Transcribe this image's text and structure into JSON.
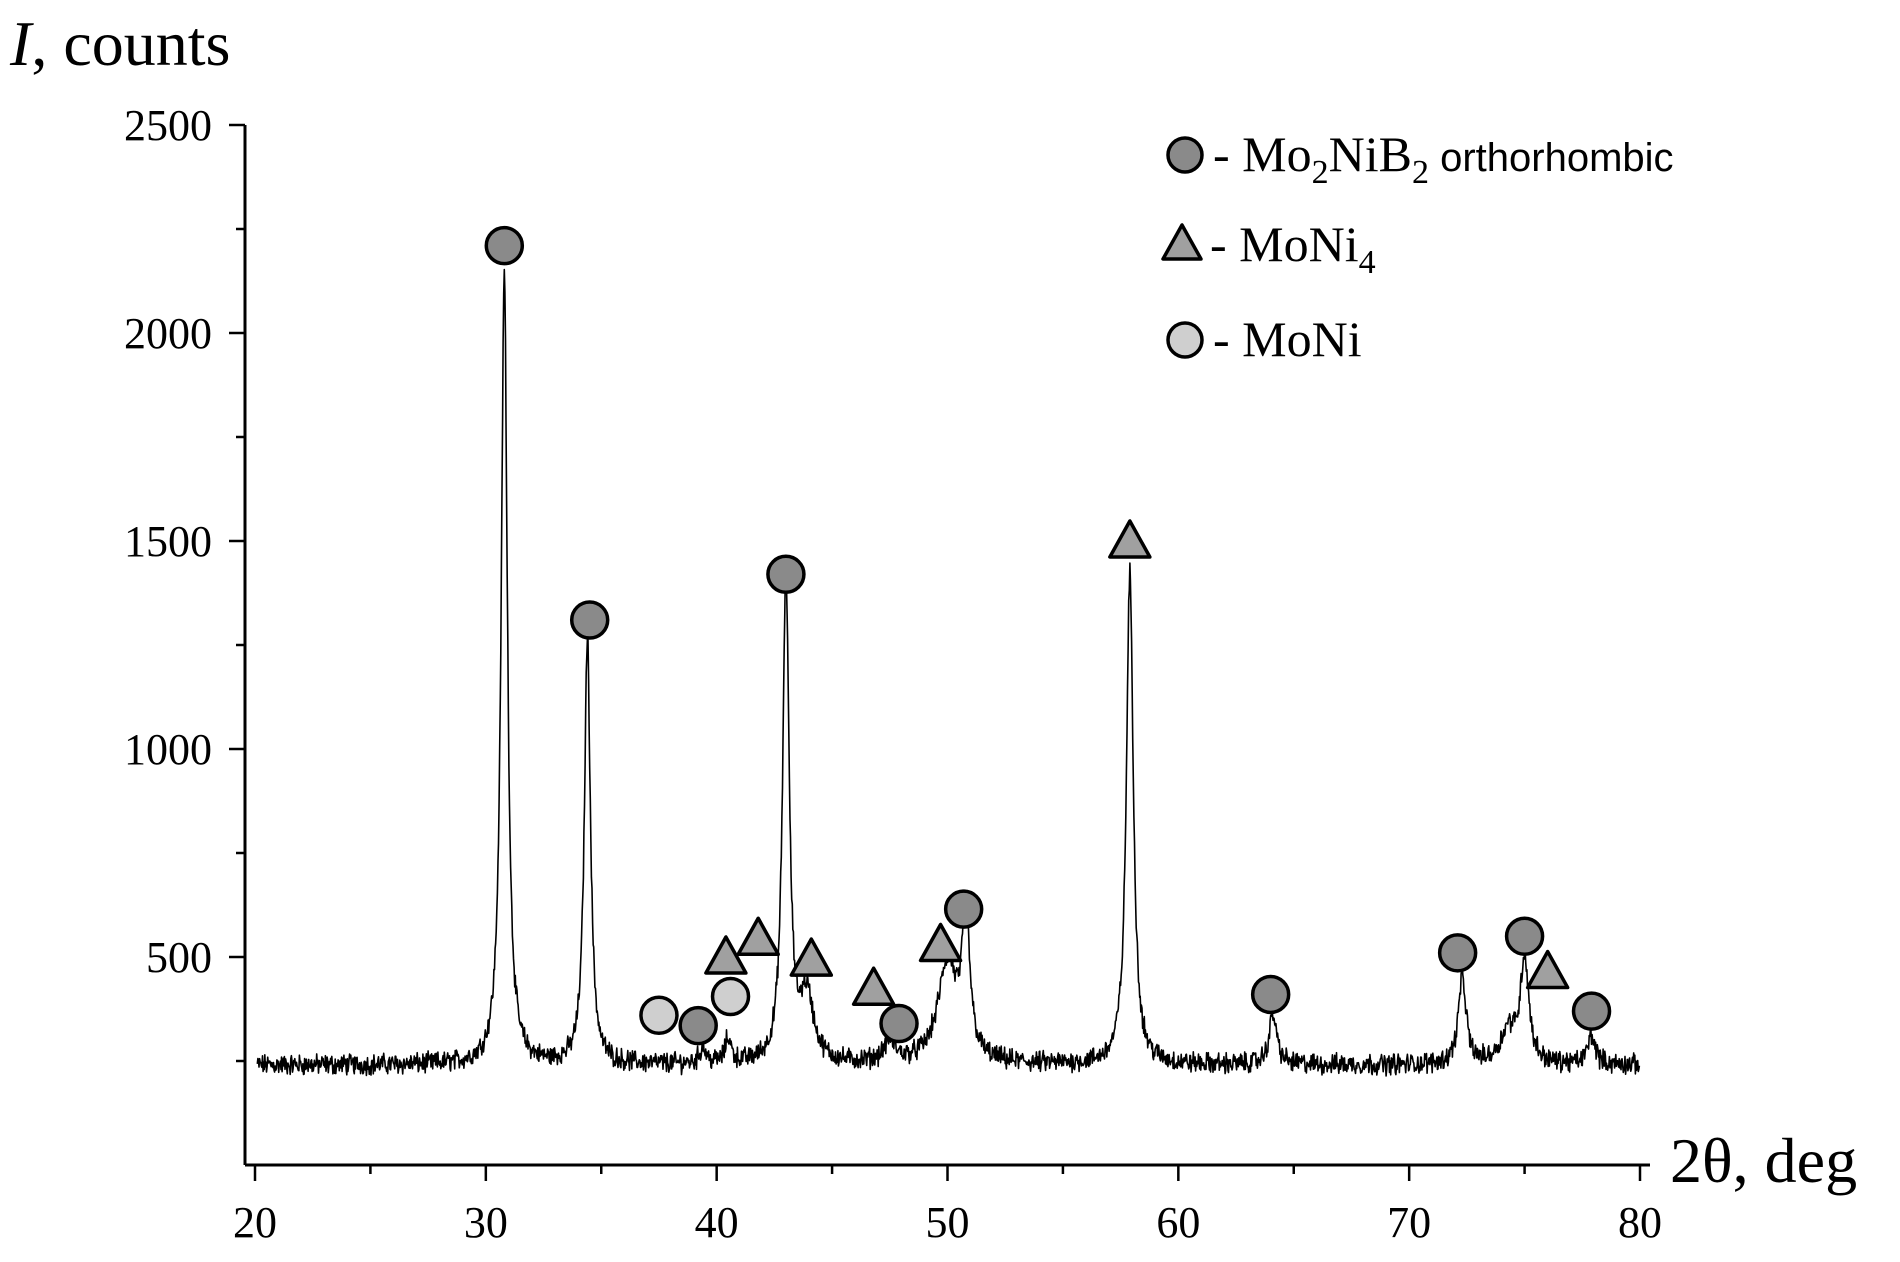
{
  "chart_data": {
    "type": "line",
    "title": "",
    "ylabel": "I",
    "ylabel_suffix": ", counts",
    "xlabel": "2θ, deg",
    "xlim": [
      20,
      80
    ],
    "ylim": [
      0,
      2500
    ],
    "x_ticks": [
      20,
      30,
      40,
      50,
      60,
      70,
      80
    ],
    "y_ticks": [
      500,
      1000,
      1500,
      2000,
      2500
    ],
    "baseline": 240,
    "peaks": [
      {
        "x": 30.8,
        "y": 2140,
        "w": 0.16
      },
      {
        "x": 34.4,
        "y": 1260,
        "w": 0.16
      },
      {
        "x": 39.4,
        "y": 280,
        "w": 0.15
      },
      {
        "x": 40.5,
        "y": 300,
        "w": 0.15
      },
      {
        "x": 43.0,
        "y": 1410,
        "w": 0.17
      },
      {
        "x": 43.9,
        "y": 400,
        "w": 0.35
      },
      {
        "x": 47.5,
        "y": 290,
        "w": 0.3
      },
      {
        "x": 50.0,
        "y": 480,
        "w": 0.5
      },
      {
        "x": 50.8,
        "y": 570,
        "w": 0.2
      },
      {
        "x": 57.9,
        "y": 1420,
        "w": 0.18
      },
      {
        "x": 64.1,
        "y": 360,
        "w": 0.2
      },
      {
        "x": 72.3,
        "y": 450,
        "w": 0.2
      },
      {
        "x": 75.0,
        "y": 490,
        "w": 0.22
      },
      {
        "x": 74.3,
        "y": 320,
        "w": 0.4
      },
      {
        "x": 77.9,
        "y": 310,
        "w": 0.2
      }
    ],
    "markers": [
      {
        "phase": "Mo2NiB2",
        "shape": "circle",
        "x": 30.8,
        "y": 2210
      },
      {
        "phase": "Mo2NiB2",
        "shape": "circle",
        "x": 34.5,
        "y": 1310
      },
      {
        "phase": "MoNi",
        "shape": "circle",
        "x": 37.5,
        "y": 360
      },
      {
        "phase": "Mo2NiB2",
        "shape": "circle",
        "x": 39.2,
        "y": 335
      },
      {
        "phase": "MoNi4",
        "shape": "triangle",
        "x": 40.4,
        "y": 500
      },
      {
        "phase": "MoNi",
        "shape": "circle",
        "x": 40.6,
        "y": 405
      },
      {
        "phase": "MoNi4",
        "shape": "triangle",
        "x": 41.8,
        "y": 545
      },
      {
        "phase": "Mo2NiB2",
        "shape": "circle",
        "x": 43.0,
        "y": 1420
      },
      {
        "phase": "MoNi4",
        "shape": "triangle",
        "x": 44.1,
        "y": 495
      },
      {
        "phase": "MoNi4",
        "shape": "triangle",
        "x": 46.8,
        "y": 425
      },
      {
        "phase": "Mo2NiB2",
        "shape": "circle",
        "x": 47.9,
        "y": 340
      },
      {
        "phase": "MoNi4",
        "shape": "triangle",
        "x": 49.7,
        "y": 530
      },
      {
        "phase": "Mo2NiB2",
        "shape": "circle",
        "x": 50.7,
        "y": 615
      },
      {
        "phase": "MoNi4",
        "shape": "triangle",
        "x": 57.9,
        "y": 1500
      },
      {
        "phase": "Mo2NiB2",
        "shape": "circle",
        "x": 64.0,
        "y": 410
      },
      {
        "phase": "Mo2NiB2",
        "shape": "circle",
        "x": 72.1,
        "y": 510
      },
      {
        "phase": "Mo2NiB2",
        "shape": "circle",
        "x": 75.0,
        "y": 550
      },
      {
        "phase": "MoNi4",
        "shape": "triangle",
        "x": 76.0,
        "y": 465
      },
      {
        "phase": "Mo2NiB2",
        "shape": "circle",
        "x": 77.9,
        "y": 370
      }
    ],
    "legend": {
      "placement": "top-right",
      "entries": [
        {
          "shape": "circle",
          "color": "#8a8a8a",
          "prefix": "- Mo",
          "sub1": "2",
          "mid": "NiB",
          "sub2": "2",
          "suffix": " orthorhombic"
        },
        {
          "shape": "triangle",
          "color": "#a0a0a0",
          "prefix": "- MoNi",
          "sub1": "4"
        },
        {
          "shape": "circle",
          "color": "#cfcfcf",
          "prefix": "- MoNi"
        }
      ]
    },
    "colors": {
      "Mo2NiB2": "#8a8a8a",
      "MoNi4": "#a0a0a0",
      "MoNi": "#cfcfcf",
      "line": "#000000"
    }
  }
}
